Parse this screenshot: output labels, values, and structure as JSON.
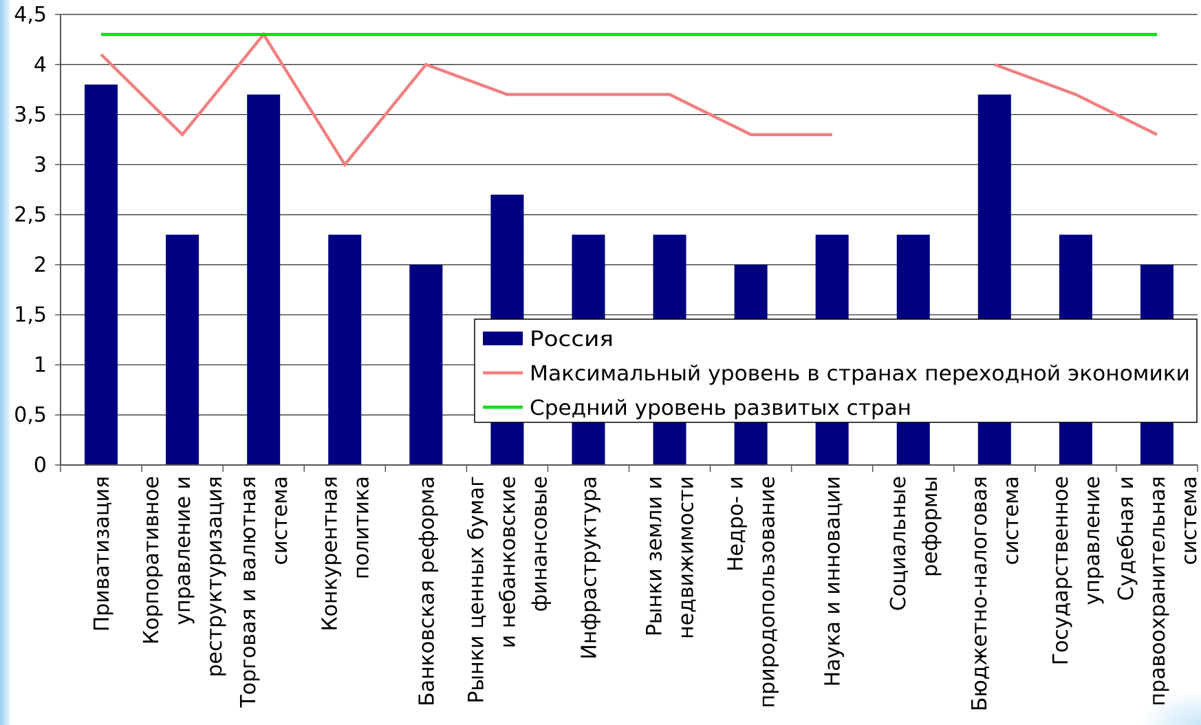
{
  "chart_data": {
    "type": "bar",
    "categories": [
      [
        "Приватизация"
      ],
      [
        "Корпоративное",
        "управление и",
        "реструктуризация"
      ],
      [
        "Торговая и валютная",
        "система"
      ],
      [
        "Конкурентная",
        "политика"
      ],
      [
        "Банковская реформа"
      ],
      [
        "Рынки ценных бумаг",
        "и небанковские",
        "финансовые"
      ],
      [
        "Инфраструктура"
      ],
      [
        "Рынки земли и",
        "недвижимости"
      ],
      [
        "Недро- и",
        "природопользование"
      ],
      [
        "Наука и инновации"
      ],
      [
        "Социальные",
        "реформы"
      ],
      [
        "Бюджетно-налоговая",
        "система"
      ],
      [
        "Государственное",
        "управление"
      ],
      [
        "Судебная и",
        "правоохранительная",
        "система"
      ]
    ],
    "series": [
      {
        "name": "Россия",
        "kind": "bar",
        "color": "#000080",
        "values": [
          3.8,
          2.3,
          3.7,
          2.3,
          2.0,
          2.7,
          2.3,
          2.3,
          2.0,
          2.3,
          2.3,
          3.7,
          2.3,
          2.0
        ]
      },
      {
        "name": "Максимальный уровень в странах переходной экономики",
        "kind": "line",
        "color": "#f08080",
        "values": [
          4.1,
          3.3,
          4.3,
          3.0,
          4.0,
          3.7,
          3.7,
          3.7,
          3.3,
          3.3,
          null,
          4.0,
          3.7,
          3.3
        ]
      },
      {
        "name": "Средний уровень развитых стран",
        "kind": "line",
        "color": "#00e000",
        "values": [
          4.3,
          4.3,
          4.3,
          4.3,
          4.3,
          4.3,
          4.3,
          4.3,
          4.3,
          4.3,
          4.3,
          4.3,
          4.3,
          4.3
        ]
      }
    ],
    "y_ticks": [
      "0",
      "0,5",
      "1",
      "1,5",
      "2",
      "2,5",
      "3",
      "3,5",
      "4",
      "4,5"
    ],
    "ylim": [
      0,
      4.5
    ],
    "grid": true,
    "legend_position": "lower-right"
  }
}
